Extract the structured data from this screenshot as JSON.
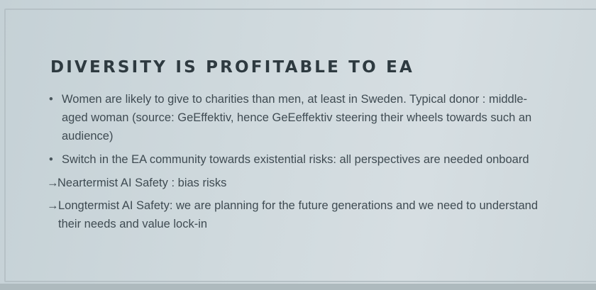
{
  "slide": {
    "title": "DIVERSITY IS PROFITABLE TO EA",
    "items": [
      {
        "marker": "•",
        "text": "Women are likely to give to charities than men, at least in Sweden. Typical donor : middle-aged woman (source: GeEffektiv, hence GeEeffektiv steering their wheels towards such an audience)"
      },
      {
        "marker": "•",
        "text": "Switch in the EA community towards existential risks: all perspectives are needed onboard"
      },
      {
        "marker": "→",
        "text": "Neartermist AI Safety : bias risks"
      },
      {
        "marker": "→",
        "text": "Longtermist AI Safety: we are planning for the future generations and we need to understand their needs and value lock-in"
      }
    ]
  }
}
